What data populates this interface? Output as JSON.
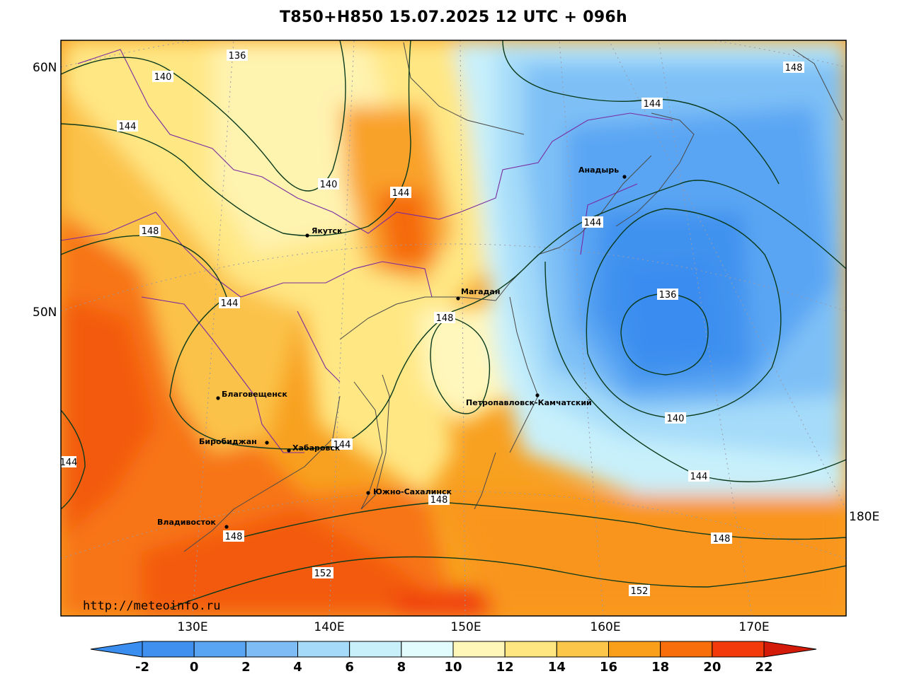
{
  "title": "T850+H850 15.07.2025 12 UTC + 096h",
  "watermark": "http://meteoinfo.ru",
  "lat_labels": [
    "60N",
    "50N"
  ],
  "lon_labels": [
    "130E",
    "140E",
    "150E",
    "160E",
    "170E"
  ],
  "edge_lon_label": "180E",
  "colorbar": {
    "ticks": [
      "-2",
      "0",
      "2",
      "4",
      "6",
      "8",
      "10",
      "12",
      "14",
      "16",
      "18",
      "20",
      "22"
    ],
    "colors": [
      "#3a8ef0",
      "#3f90ef",
      "#5aa5f3",
      "#7ebcf6",
      "#a6daf9",
      "#c7f0fb",
      "#fff7b8",
      "#ffe680",
      "#fcc64a",
      "#fa9f1a",
      "#f86e0a",
      "#f33a0a",
      "#d11a08",
      "#3a8ef0"
    ]
  },
  "cities": [
    {
      "name": "Якутск"
    },
    {
      "name": "Магадан"
    },
    {
      "name": "Анадырь"
    },
    {
      "name": "Благовещенск"
    },
    {
      "name": "Биробиджан"
    },
    {
      "name": "Хабаровск"
    },
    {
      "name": "Петропавловск-Камчатский"
    },
    {
      "name": "Южно-Сахалинск"
    },
    {
      "name": "Владивосток"
    }
  ],
  "contour_labels": [
    {
      "value": "136"
    },
    {
      "value": "140"
    },
    {
      "value": "144"
    },
    {
      "value": "140"
    },
    {
      "value": "148"
    },
    {
      "value": "144"
    },
    {
      "value": "144"
    },
    {
      "value": "144"
    },
    {
      "value": "144"
    },
    {
      "value": "148"
    },
    {
      "value": "144"
    },
    {
      "value": "148"
    },
    {
      "value": "148"
    },
    {
      "value": "152"
    },
    {
      "value": "152"
    },
    {
      "value": "136"
    },
    {
      "value": "140"
    },
    {
      "value": "144"
    },
    {
      "value": "148"
    },
    {
      "value": "148"
    },
    {
      "value": "144"
    }
  ]
}
